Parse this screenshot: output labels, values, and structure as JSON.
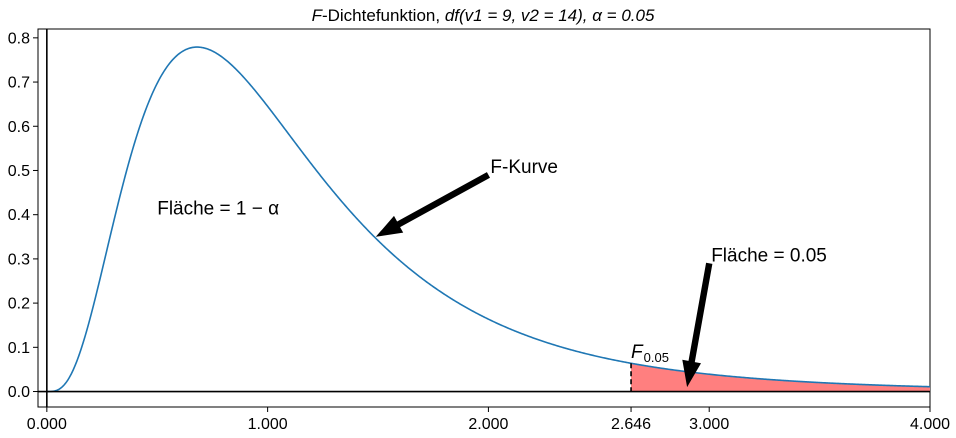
{
  "chart_data": {
    "type": "line",
    "title_main": "-Dichtefunktion, ",
    "title_parts": {
      "F": "F",
      "df": "df",
      "v1": "(v1 = 9, v2 = 14), ",
      "alpha": "α = 0.05"
    },
    "distribution": {
      "df1": 9,
      "df2": 14,
      "alpha": 0.05,
      "critical_value": 2.646
    },
    "xlim": [
      -0.04,
      4.0
    ],
    "ylim": [
      -0.035,
      0.82
    ],
    "x_ticks": [
      {
        "value": 0,
        "label": "0.000"
      },
      {
        "value": 1,
        "label": "1.000"
      },
      {
        "value": 2,
        "label": "2.000"
      },
      {
        "value": 2.646,
        "label": "2.646"
      },
      {
        "value": 3,
        "label": "3.000"
      },
      {
        "value": 4,
        "label": "4.000"
      }
    ],
    "y_ticks": [
      {
        "value": 0.0,
        "label": "0.0"
      },
      {
        "value": 0.1,
        "label": "0.1"
      },
      {
        "value": 0.2,
        "label": "0.2"
      },
      {
        "value": 0.3,
        "label": "0.3"
      },
      {
        "value": 0.4,
        "label": "0.4"
      },
      {
        "value": 0.5,
        "label": "0.5"
      },
      {
        "value": 0.6,
        "label": "0.6"
      },
      {
        "value": 0.7,
        "label": "0.7"
      },
      {
        "value": 0.8,
        "label": "0.8"
      }
    ],
    "curve_color": "#1f77b4",
    "fill_color": "#ff7f7f",
    "annotations": {
      "area_main": "Fläche = 1 − α",
      "curve_label": "F-Kurve",
      "tail_label": "Fläche = 0.05",
      "critical_label_main": "F",
      "critical_label_sub": "0.05"
    },
    "arrows": [
      {
        "name": "curve-arrow",
        "text_xy": [
          2.0,
          0.49
        ],
        "tip_xy": [
          1.49,
          0.35
        ]
      },
      {
        "name": "tail-arrow",
        "text_xy": [
          3.0,
          0.29
        ],
        "tip_xy": [
          2.9,
          0.01
        ]
      }
    ]
  }
}
